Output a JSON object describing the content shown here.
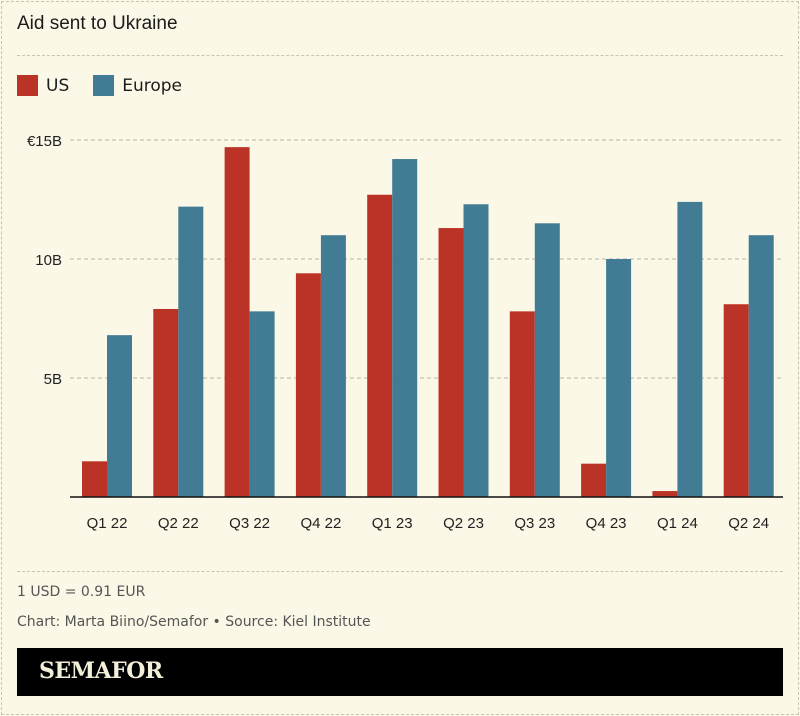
{
  "chart_data": {
    "type": "bar",
    "title": "Aid sent to Ukraine",
    "categories": [
      "Q1 22",
      "Q2 22",
      "Q3 22",
      "Q4 22",
      "Q1 23",
      "Q2 23",
      "Q3 23",
      "Q4 23",
      "Q1 24",
      "Q2 24"
    ],
    "series": [
      {
        "name": "US",
        "color": "#bb3326",
        "values": [
          1.5,
          7.9,
          14.7,
          9.4,
          12.7,
          11.3,
          7.8,
          1.4,
          0.25,
          8.1
        ]
      },
      {
        "name": "Europe",
        "color": "#417c94",
        "values": [
          6.8,
          12.2,
          7.8,
          11.0,
          14.2,
          12.3,
          11.5,
          10.0,
          12.4,
          11.0
        ]
      }
    ],
    "ylim": [
      0,
      15
    ],
    "yticks": [
      {
        "value": 5,
        "label": "5B"
      },
      {
        "value": 10,
        "label": "10B"
      },
      {
        "value": 15,
        "label": "€15B"
      }
    ],
    "xlabel": "",
    "ylabel": "",
    "grid": true,
    "legend": "top-left"
  },
  "notes": {
    "conversion": "1 USD = 0.91 EUR",
    "credit": "Chart: Marta Biino/Semafor • Source: Kiel Institute"
  },
  "brand": "SEMAFOR"
}
